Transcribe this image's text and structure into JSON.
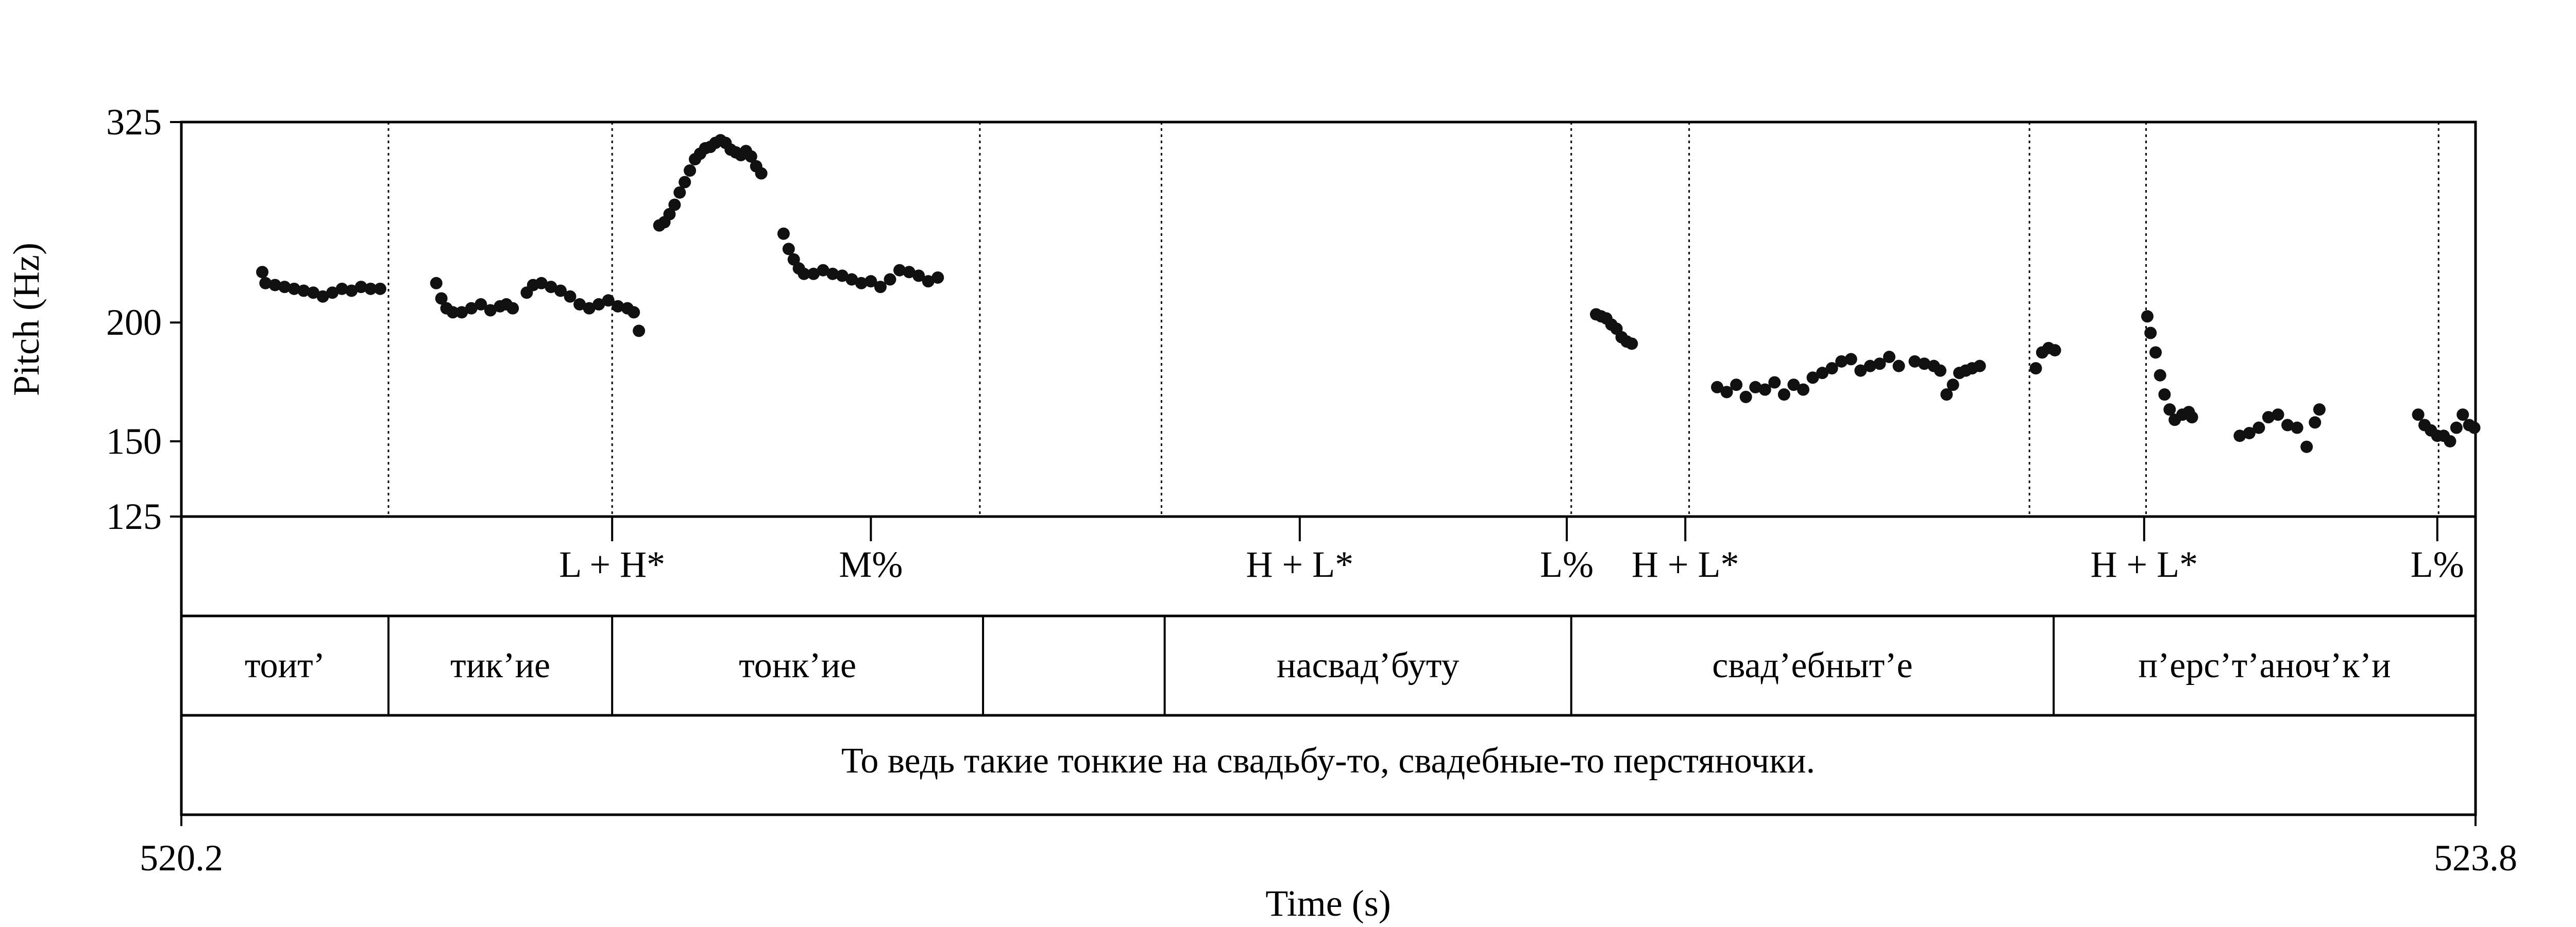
{
  "chart_data": {
    "type": "scatter",
    "title": "",
    "xlabel": "Time (s)",
    "ylabel": "Pitch (Hz)",
    "xlim": [
      520.2,
      523.8
    ],
    "ylim": [
      125,
      325
    ],
    "y_scale": "log",
    "x_tick_labels": [
      "520.2",
      "523.8"
    ],
    "y_tick_labels": [
      "325",
      "200",
      "150",
      "125"
    ],
    "y_ticks": [
      325,
      200,
      150,
      125
    ],
    "grid": false,
    "legend": "none",
    "colors": {
      "points": "#111111",
      "frame": "#000000",
      "boundaries": "#000000",
      "background": "#ffffff"
    },
    "tiers": {
      "tones": {
        "boundaries": [
          520.525,
          520.876,
          521.453,
          521.738,
          522.381,
          522.566,
          523.1,
          523.283,
          523.742
        ],
        "marks": [
          {
            "t": 520.876,
            "label": "L + H*"
          },
          {
            "t": 521.282,
            "label": "M%"
          },
          {
            "t": 521.955,
            "label": "H + L*"
          },
          {
            "t": 522.374,
            "label": "L%"
          },
          {
            "t": 522.56,
            "label": "H + L*"
          },
          {
            "t": 523.28,
            "label": "H + L*"
          },
          {
            "t": 523.74,
            "label": "L%"
          }
        ]
      },
      "words": {
        "boundaries": [
          520.525,
          520.876,
          521.458,
          521.743,
          522.381,
          523.138
        ],
        "intervals": [
          "тоит’",
          "тик’ие",
          "тонк’ие",
          "",
          "насвад’буту",
          "свад’ебныт’е",
          "п’ерс’т’аноч’к’и"
        ]
      },
      "sentence": "То ведь такие тонкие на свадьбу-то, свадебные-то перстяночки."
    },
    "series": [
      {
        "points": [
          [
            520.327,
            226
          ],
          [
            520.332,
            220
          ],
          [
            520.347,
            219
          ],
          [
            520.362,
            218
          ],
          [
            520.377,
            217
          ],
          [
            520.392,
            216
          ],
          [
            520.407,
            215
          ],
          [
            520.422,
            213
          ],
          [
            520.437,
            215
          ],
          [
            520.452,
            217
          ],
          [
            520.467,
            216
          ],
          [
            520.482,
            218
          ],
          [
            520.497,
            217
          ],
          [
            520.512,
            217
          ],
          [
            520.6,
            220
          ],
          [
            520.608,
            212
          ],
          [
            520.616,
            207
          ],
          [
            520.626,
            205
          ],
          [
            520.64,
            205
          ],
          [
            520.655,
            207
          ],
          [
            520.67,
            209
          ],
          [
            520.685,
            206
          ],
          [
            520.7,
            208
          ],
          [
            520.71,
            209
          ],
          [
            520.72,
            207
          ],
          [
            520.742,
            215
          ],
          [
            520.752,
            219
          ],
          [
            520.765,
            220
          ],
          [
            520.78,
            218
          ],
          [
            520.795,
            216
          ],
          [
            520.81,
            213
          ],
          [
            520.825,
            209
          ],
          [
            520.84,
            207
          ],
          [
            520.855,
            209
          ],
          [
            520.87,
            211
          ],
          [
            520.885,
            208
          ],
          [
            520.9,
            207
          ],
          [
            520.91,
            205
          ],
          [
            520.918,
            196
          ],
          [
            520.95,
            253
          ],
          [
            520.958,
            255
          ],
          [
            520.966,
            260
          ],
          [
            520.974,
            266
          ],
          [
            520.982,
            274
          ],
          [
            520.99,
            281
          ],
          [
            520.998,
            289
          ],
          [
            521.006,
            297
          ],
          [
            521.014,
            301
          ],
          [
            521.022,
            305
          ],
          [
            521.03,
            306
          ],
          [
            521.038,
            309
          ],
          [
            521.046,
            311
          ],
          [
            521.054,
            309
          ],
          [
            521.062,
            304
          ],
          [
            521.07,
            302
          ],
          [
            521.078,
            300
          ],
          [
            521.086,
            303
          ],
          [
            521.094,
            299
          ],
          [
            521.102,
            292
          ],
          [
            521.11,
            287
          ],
          [
            521.145,
            248
          ],
          [
            521.153,
            239
          ],
          [
            521.161,
            233
          ],
          [
            521.169,
            228
          ],
          [
            521.177,
            225
          ],
          [
            521.192,
            225
          ],
          [
            521.207,
            227
          ],
          [
            521.222,
            225
          ],
          [
            521.237,
            224
          ],
          [
            521.252,
            222
          ],
          [
            521.267,
            220
          ],
          [
            521.282,
            221
          ],
          [
            521.297,
            218
          ],
          [
            521.312,
            222
          ],
          [
            521.327,
            227
          ],
          [
            521.342,
            226
          ],
          [
            521.357,
            224
          ],
          [
            521.372,
            221
          ],
          [
            521.387,
            223
          ],
          [
            522.42,
            204
          ],
          [
            522.428,
            203
          ],
          [
            522.436,
            202
          ],
          [
            522.444,
            199
          ],
          [
            522.452,
            197
          ],
          [
            522.46,
            193
          ],
          [
            522.468,
            191
          ],
          [
            522.476,
            190
          ],
          [
            522.61,
            171
          ],
          [
            522.625,
            169
          ],
          [
            522.64,
            172
          ],
          [
            522.655,
            167
          ],
          [
            522.67,
            171
          ],
          [
            522.685,
            170
          ],
          [
            522.7,
            173
          ],
          [
            522.715,
            168
          ],
          [
            522.73,
            172
          ],
          [
            522.745,
            170
          ],
          [
            522.76,
            175
          ],
          [
            522.775,
            177
          ],
          [
            522.79,
            179
          ],
          [
            522.805,
            182
          ],
          [
            522.82,
            183
          ],
          [
            522.835,
            178
          ],
          [
            522.85,
            180
          ],
          [
            522.865,
            181
          ],
          [
            522.88,
            184
          ],
          [
            522.895,
            180
          ],
          [
            522.92,
            182
          ],
          [
            522.935,
            181
          ],
          [
            522.95,
            180
          ],
          [
            522.96,
            178
          ],
          [
            522.97,
            168
          ],
          [
            522.98,
            172
          ],
          [
            522.99,
            177
          ],
          [
            523.0,
            178
          ],
          [
            523.01,
            179
          ],
          [
            523.022,
            180
          ],
          [
            523.11,
            179
          ],
          [
            523.12,
            186
          ],
          [
            523.13,
            188
          ],
          [
            523.14,
            187
          ],
          [
            523.285,
            203
          ],
          [
            523.29,
            195
          ],
          [
            523.298,
            186
          ],
          [
            523.305,
            176
          ],
          [
            523.312,
            168
          ],
          [
            523.32,
            162
          ],
          [
            523.328,
            158
          ],
          [
            523.34,
            160
          ],
          [
            523.35,
            161
          ],
          [
            523.355,
            159
          ],
          [
            523.43,
            152
          ],
          [
            523.445,
            153
          ],
          [
            523.46,
            155
          ],
          [
            523.475,
            159
          ],
          [
            523.49,
            160
          ],
          [
            523.505,
            156
          ],
          [
            523.52,
            155
          ],
          [
            523.535,
            148
          ],
          [
            523.548,
            157
          ],
          [
            523.555,
            162
          ],
          [
            523.71,
            160
          ],
          [
            523.72,
            156
          ],
          [
            523.73,
            154
          ],
          [
            523.74,
            152
          ],
          [
            523.75,
            152
          ],
          [
            523.76,
            150
          ],
          [
            523.77,
            155
          ],
          [
            523.78,
            160
          ],
          [
            523.79,
            156
          ],
          [
            523.798,
            155
          ]
        ]
      }
    ]
  }
}
